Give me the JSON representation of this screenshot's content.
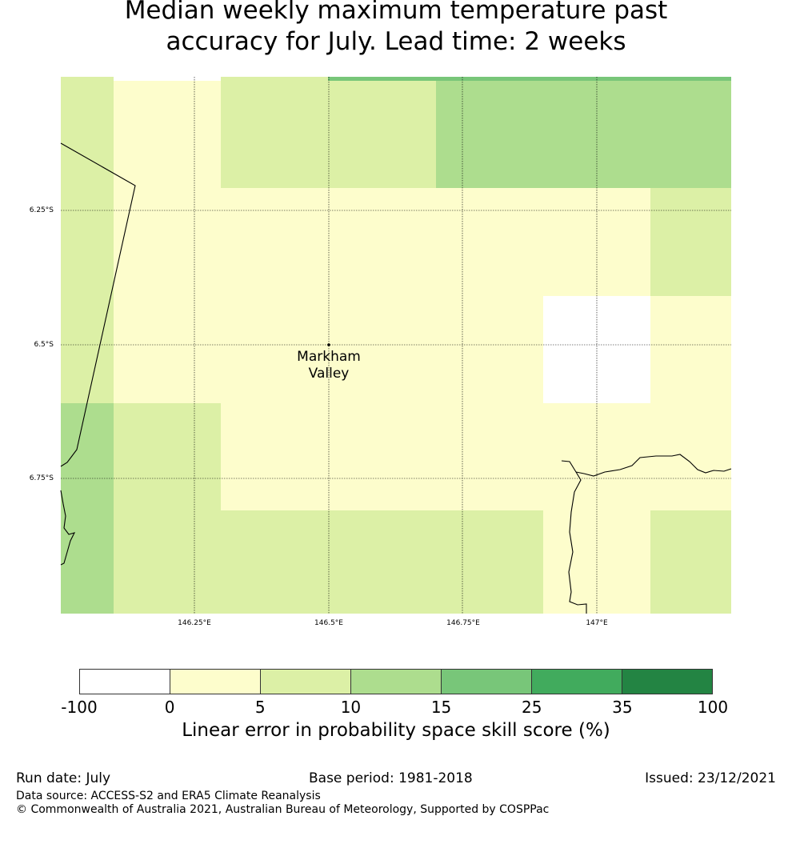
{
  "title": {
    "line1": "Median weekly maximum temperature past",
    "line2": "accuracy for July. Lead time: 2 weeks"
  },
  "map": {
    "lon_ticks": [
      "146.25°E",
      "146.5°E",
      "146.75°E",
      "147°E"
    ],
    "lat_ticks": [
      "6.25°S",
      "6.5°S",
      "6.75°S"
    ],
    "place_label": [
      "Markham",
      "Valley"
    ],
    "skill_grid": [
      [
        5,
        0,
        5,
        5,
        10,
        10,
        10
      ],
      [
        5,
        0,
        0,
        0,
        0,
        0,
        5
      ],
      [
        5,
        0,
        0,
        0,
        0,
        -100,
        0
      ],
      [
        10,
        5,
        0,
        0,
        0,
        0,
        0
      ],
      [
        10,
        5,
        5,
        5,
        5,
        0,
        5
      ]
    ]
  },
  "legend": {
    "title": "Linear error in probability space skill score (%)",
    "ticks": [
      "-100",
      "0",
      "5",
      "10",
      "15",
      "25",
      "35",
      "100"
    ],
    "colors": [
      "#ffffff",
      "#fdfdcc",
      "#dcf0a6",
      "#addd8e",
      "#78c679",
      "#41ab5d",
      "#238443"
    ]
  },
  "footer": {
    "run_date": "Run date: July",
    "base_period": "Base period: 1981-2018",
    "issued": "Issued: 23/12/2021",
    "data_source": "Data source: ACCESS-S2 and ERA5 Climate Reanalysis",
    "copyright": "© Commonwealth of Australia 2021, Australian Bureau of Meteorology, Supported by COSPPac"
  }
}
